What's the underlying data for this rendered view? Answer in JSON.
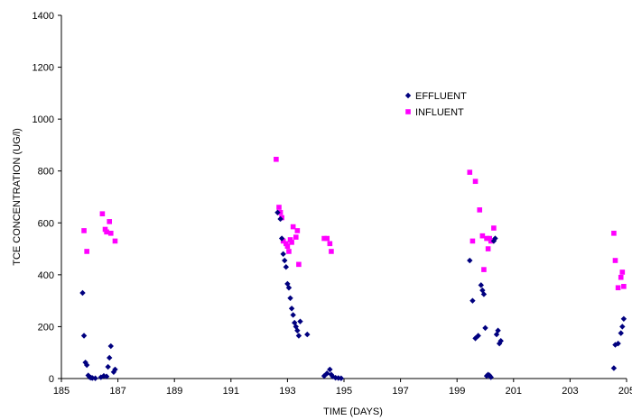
{
  "chart_data": {
    "type": "scatter",
    "title": "",
    "xlabel": "TIME (DAYS)",
    "ylabel": "TCE CONCENTRATION (UG/l)",
    "xlim": [
      185,
      205
    ],
    "ylim": [
      0,
      1400
    ],
    "x_ticks": [
      185,
      187,
      189,
      191,
      193,
      195,
      197,
      199,
      201,
      203,
      205
    ],
    "y_ticks": [
      0,
      200,
      400,
      600,
      800,
      1000,
      1200,
      1400
    ],
    "grid": false,
    "legend_position": "upper-center-right",
    "series": [
      {
        "name": "EFFLUENT",
        "marker": "diamond",
        "color": "#00007f",
        "points": [
          [
            185.75,
            330
          ],
          [
            185.8,
            165
          ],
          [
            185.85,
            62
          ],
          [
            185.9,
            52
          ],
          [
            185.95,
            12
          ],
          [
            186.0,
            5
          ],
          [
            186.05,
            3
          ],
          [
            186.1,
            2
          ],
          [
            186.2,
            1
          ],
          [
            186.4,
            5
          ],
          [
            186.5,
            10
          ],
          [
            186.6,
            8
          ],
          [
            186.65,
            45
          ],
          [
            186.7,
            80
          ],
          [
            186.75,
            125
          ],
          [
            186.85,
            25
          ],
          [
            186.9,
            35
          ],
          [
            192.65,
            640
          ],
          [
            192.75,
            615
          ],
          [
            192.8,
            540
          ],
          [
            192.85,
            480
          ],
          [
            192.9,
            455
          ],
          [
            192.95,
            430
          ],
          [
            193.0,
            365
          ],
          [
            193.05,
            350
          ],
          [
            193.1,
            310
          ],
          [
            193.15,
            270
          ],
          [
            193.2,
            245
          ],
          [
            193.25,
            215
          ],
          [
            193.3,
            200
          ],
          [
            193.35,
            185
          ],
          [
            193.4,
            165
          ],
          [
            193.45,
            220
          ],
          [
            193.7,
            170
          ],
          [
            194.3,
            10
          ],
          [
            194.4,
            20
          ],
          [
            194.5,
            35
          ],
          [
            194.55,
            15
          ],
          [
            194.6,
            8
          ],
          [
            194.7,
            3
          ],
          [
            194.8,
            2
          ],
          [
            194.9,
            1
          ],
          [
            199.45,
            455
          ],
          [
            199.55,
            300
          ],
          [
            199.65,
            155
          ],
          [
            199.75,
            165
          ],
          [
            199.85,
            360
          ],
          [
            199.9,
            340
          ],
          [
            199.95,
            325
          ],
          [
            200.0,
            195
          ],
          [
            200.05,
            10
          ],
          [
            200.1,
            15
          ],
          [
            200.15,
            12
          ],
          [
            200.2,
            5
          ],
          [
            200.3,
            530
          ],
          [
            200.35,
            540
          ],
          [
            200.4,
            170
          ],
          [
            200.45,
            185
          ],
          [
            200.5,
            135
          ],
          [
            200.55,
            145
          ],
          [
            204.55,
            40
          ],
          [
            204.6,
            130
          ],
          [
            204.7,
            135
          ],
          [
            204.8,
            175
          ],
          [
            204.85,
            200
          ],
          [
            204.9,
            230
          ]
        ]
      },
      {
        "name": "INFLUENT",
        "marker": "square",
        "color": "#ff00ff",
        "points": [
          [
            185.8,
            570
          ],
          [
            185.9,
            490
          ],
          [
            186.45,
            635
          ],
          [
            186.55,
            575
          ],
          [
            186.6,
            565
          ],
          [
            186.7,
            605
          ],
          [
            186.75,
            560
          ],
          [
            186.9,
            530
          ],
          [
            192.6,
            845
          ],
          [
            192.7,
            660
          ],
          [
            192.75,
            640
          ],
          [
            192.8,
            620
          ],
          [
            192.85,
            530
          ],
          [
            192.95,
            520
          ],
          [
            193.0,
            510
          ],
          [
            193.05,
            490
          ],
          [
            193.1,
            535
          ],
          [
            193.15,
            525
          ],
          [
            193.2,
            585
          ],
          [
            193.3,
            545
          ],
          [
            193.35,
            570
          ],
          [
            193.4,
            440
          ],
          [
            194.3,
            540
          ],
          [
            194.4,
            540
          ],
          [
            194.5,
            520
          ],
          [
            194.55,
            490
          ],
          [
            199.45,
            795
          ],
          [
            199.55,
            530
          ],
          [
            199.65,
            760
          ],
          [
            199.8,
            650
          ],
          [
            199.9,
            550
          ],
          [
            199.95,
            420
          ],
          [
            200.05,
            540
          ],
          [
            200.1,
            500
          ],
          [
            200.15,
            540
          ],
          [
            200.2,
            530
          ],
          [
            200.3,
            580
          ],
          [
            204.55,
            560
          ],
          [
            204.6,
            455
          ],
          [
            204.7,
            350
          ],
          [
            204.8,
            390
          ],
          [
            204.85,
            410
          ],
          [
            204.9,
            355
          ]
        ]
      }
    ]
  }
}
